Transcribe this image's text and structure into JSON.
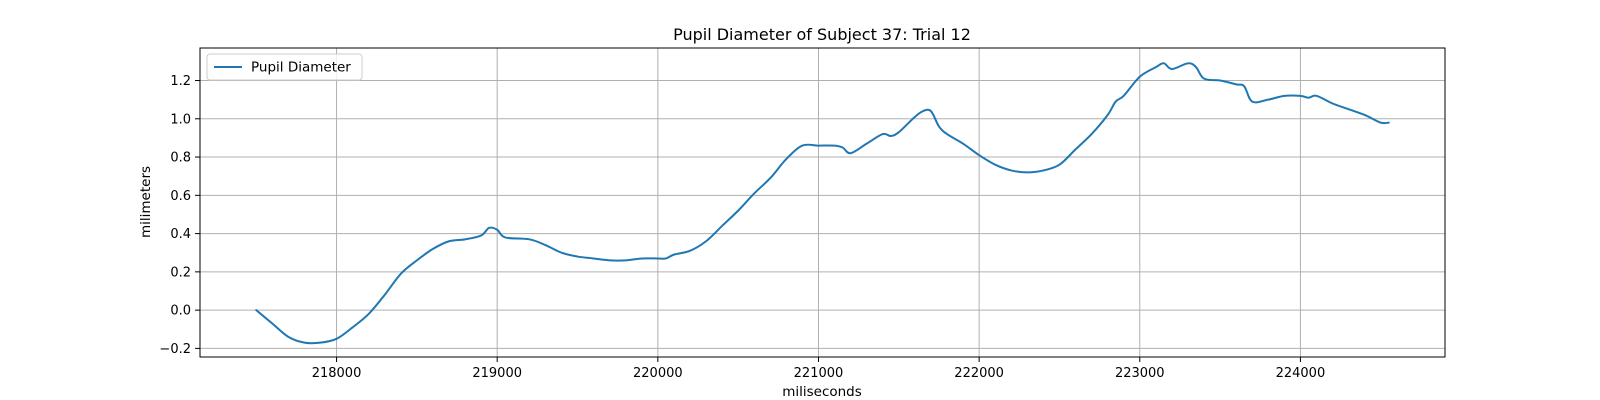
{
  "chart_data": {
    "type": "line",
    "title": "Pupil Diameter of Subject 37: Trial 12",
    "xlabel": "miliseconds",
    "ylabel": "milimeters",
    "xlim": [
      217150,
      224900
    ],
    "ylim": [
      -0.245,
      1.37
    ],
    "x_ticks": [
      218000,
      219000,
      220000,
      221000,
      222000,
      223000,
      224000
    ],
    "x_tick_labels": [
      "218000",
      "219000",
      "220000",
      "221000",
      "222000",
      "223000",
      "224000"
    ],
    "y_ticks": [
      -0.2,
      0.0,
      0.2,
      0.4,
      0.6,
      0.8,
      1.0,
      1.2
    ],
    "y_tick_labels": [
      "−0.2",
      "0.0",
      "0.2",
      "0.4",
      "0.6",
      "0.8",
      "1.0",
      "1.2"
    ],
    "grid": true,
    "legend_placement": "upper-left",
    "series": [
      {
        "name": "Pupil Diameter",
        "color": "#1f77b4",
        "points": [
          [
            217500,
            0.0
          ],
          [
            217600,
            -0.07
          ],
          [
            217700,
            -0.14
          ],
          [
            217800,
            -0.17
          ],
          [
            217900,
            -0.17
          ],
          [
            218000,
            -0.15
          ],
          [
            218100,
            -0.09
          ],
          [
            218200,
            -0.02
          ],
          [
            218300,
            0.08
          ],
          [
            218400,
            0.19
          ],
          [
            218500,
            0.26
          ],
          [
            218600,
            0.32
          ],
          [
            218700,
            0.36
          ],
          [
            218800,
            0.37
          ],
          [
            218900,
            0.39
          ],
          [
            218950,
            0.43
          ],
          [
            219000,
            0.42
          ],
          [
            219050,
            0.38
          ],
          [
            219200,
            0.37
          ],
          [
            219300,
            0.34
          ],
          [
            219400,
            0.3
          ],
          [
            219500,
            0.28
          ],
          [
            219600,
            0.27
          ],
          [
            219700,
            0.26
          ],
          [
            219800,
            0.26
          ],
          [
            219900,
            0.27
          ],
          [
            220000,
            0.27
          ],
          [
            220050,
            0.27
          ],
          [
            220100,
            0.29
          ],
          [
            220200,
            0.31
          ],
          [
            220300,
            0.36
          ],
          [
            220400,
            0.44
          ],
          [
            220500,
            0.52
          ],
          [
            220600,
            0.61
          ],
          [
            220700,
            0.69
          ],
          [
            220800,
            0.79
          ],
          [
            220900,
            0.86
          ],
          [
            221000,
            0.86
          ],
          [
            221100,
            0.86
          ],
          [
            221150,
            0.85
          ],
          [
            221200,
            0.82
          ],
          [
            221300,
            0.87
          ],
          [
            221400,
            0.92
          ],
          [
            221450,
            0.91
          ],
          [
            221500,
            0.93
          ],
          [
            221600,
            1.01
          ],
          [
            221650,
            1.04
          ],
          [
            221700,
            1.04
          ],
          [
            221750,
            0.96
          ],
          [
            221800,
            0.92
          ],
          [
            221900,
            0.87
          ],
          [
            222000,
            0.81
          ],
          [
            222100,
            0.76
          ],
          [
            222200,
            0.73
          ],
          [
            222300,
            0.72
          ],
          [
            222400,
            0.73
          ],
          [
            222500,
            0.76
          ],
          [
            222600,
            0.84
          ],
          [
            222700,
            0.92
          ],
          [
            222800,
            1.02
          ],
          [
            222850,
            1.09
          ],
          [
            222900,
            1.12
          ],
          [
            223000,
            1.22
          ],
          [
            223100,
            1.27
          ],
          [
            223150,
            1.29
          ],
          [
            223200,
            1.26
          ],
          [
            223300,
            1.29
          ],
          [
            223350,
            1.27
          ],
          [
            223400,
            1.21
          ],
          [
            223500,
            1.2
          ],
          [
            223600,
            1.18
          ],
          [
            223650,
            1.17
          ],
          [
            223700,
            1.09
          ],
          [
            223800,
            1.1
          ],
          [
            223900,
            1.12
          ],
          [
            224000,
            1.12
          ],
          [
            224050,
            1.11
          ],
          [
            224100,
            1.12
          ],
          [
            224200,
            1.08
          ],
          [
            224300,
            1.05
          ],
          [
            224400,
            1.02
          ],
          [
            224500,
            0.98
          ],
          [
            224550,
            0.98
          ]
        ]
      }
    ]
  }
}
